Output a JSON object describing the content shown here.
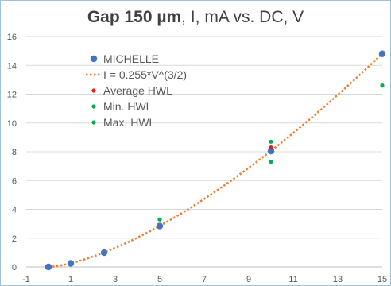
{
  "chart_data": {
    "type": "scatter",
    "title_bold": "Gap 150 µm",
    "title_rest": ", I, mA vs. DC, V",
    "xlim": [
      -1,
      15
    ],
    "ylim": [
      0,
      16
    ],
    "x_ticks": [
      -1,
      1,
      3,
      5,
      7,
      9,
      11,
      13,
      15
    ],
    "y_ticks": [
      0,
      2,
      4,
      6,
      8,
      10,
      12,
      14,
      16
    ],
    "grid": "horizontal",
    "legend_position": "top-left",
    "series": [
      {
        "name": "MICHELLE",
        "marker": "large-dot",
        "color": "#4472c4",
        "points": [
          [
            0,
            0
          ],
          [
            1,
            0.25
          ],
          [
            2.5,
            0.99
          ],
          [
            5,
            2.84
          ],
          [
            10,
            8.05
          ],
          [
            15,
            14.8
          ]
        ]
      },
      {
        "name": "I = 0.255*V^(3/2)",
        "marker": "dotted-line",
        "color": "#ed7d31",
        "function_coefficient": 0.255,
        "function_exponent": 1.5,
        "domain": [
          0,
          15
        ]
      },
      {
        "name": "Average HWL",
        "marker": "small-dot",
        "color": "#e02020",
        "points": [
          [
            10,
            8.3
          ]
        ]
      },
      {
        "name": "Min. HWL",
        "marker": "small-dot",
        "color": "#00b050",
        "points": [
          [
            5,
            3.3
          ],
          [
            10,
            7.3
          ],
          [
            15,
            12.6
          ]
        ]
      },
      {
        "name": "Max. HWL",
        "marker": "small-dot",
        "color": "#00b050",
        "points": [
          [
            10,
            8.7
          ]
        ]
      }
    ]
  }
}
